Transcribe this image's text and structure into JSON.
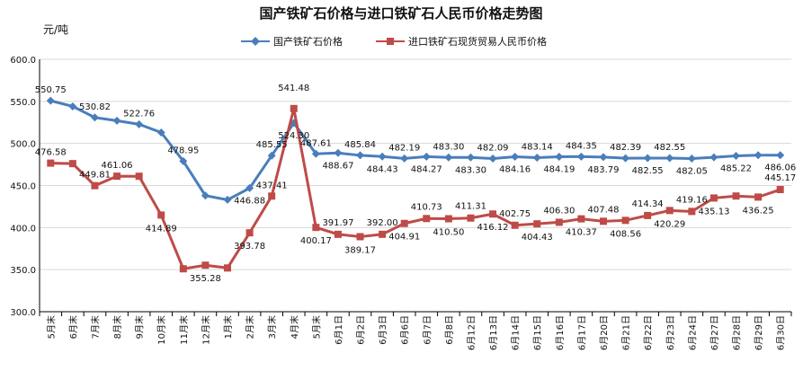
{
  "chart_data": {
    "type": "line",
    "title": "国产铁矿石价格与进口铁矿石人民币价格走势图",
    "unit_label": "元/吨",
    "ylim": [
      300,
      600
    ],
    "yticks": [
      "300.0",
      "350.0",
      "400.0",
      "450.0",
      "500.0",
      "550.0",
      "600.0"
    ],
    "grid": true,
    "legend_position": "top-center",
    "categories": [
      "5月末",
      "6月末",
      "7月末",
      "8月末",
      "9月末",
      "10月末",
      "11月末",
      "12月末",
      "1月末",
      "2月末",
      "3月末",
      "4月末",
      "5月末",
      "6月1日",
      "6月2日",
      "6月3日",
      "6月6日",
      "6月7日",
      "6月8日",
      "6月12日",
      "6月13日",
      "6月14日",
      "6月15日",
      "6月16日",
      "6月17日",
      "6月20日",
      "6月21日",
      "6月22日",
      "6月23日",
      "6月24日",
      "6月27日",
      "6月28日",
      "6月29日",
      "6月30日"
    ],
    "series": [
      {
        "name": "国产铁矿石价格",
        "color": "#4a7ebb",
        "marker": "diamond",
        "values": [
          550.75,
          544.0,
          530.82,
          527.0,
          522.76,
          513.0,
          478.95,
          438.0,
          433.0,
          446.88,
          485.55,
          524.3,
          487.61,
          488.67,
          485.84,
          484.43,
          482.19,
          484.27,
          483.3,
          483.3,
          482.09,
          484.16,
          483.14,
          484.19,
          484.35,
          483.79,
          482.39,
          482.55,
          482.55,
          482.05,
          483.5,
          485.22,
          486.0,
          486.06
        ],
        "labels": [
          "550.75",
          "",
          "530.82",
          "",
          "522.76",
          "",
          "478.95",
          "",
          "",
          "446.88",
          "485.55",
          "524.30",
          "487.61",
          "488.67",
          "485.84",
          "484.43",
          "482.19",
          "484.27",
          "483.30",
          "483.30",
          "482.09",
          "484.16",
          "483.14",
          "484.19",
          "484.35",
          "483.79",
          "482.39",
          "482.55",
          "482.55",
          "482.05",
          "",
          "485.22",
          "",
          "486.06"
        ]
      },
      {
        "name": "进口铁矿石现货贸易人民币价格",
        "color": "#be4b48",
        "marker": "square",
        "values": [
          476.58,
          476.0,
          449.81,
          461.06,
          461.0,
          414.89,
          351.0,
          355.28,
          352.0,
          393.78,
          437.41,
          541.48,
          400.17,
          391.97,
          389.17,
          392.0,
          404.91,
          410.73,
          410.5,
          411.31,
          416.12,
          402.75,
          404.43,
          406.3,
          410.37,
          407.48,
          408.56,
          414.34,
          420.29,
          419.16,
          435.13,
          437.5,
          436.25,
          445.17
        ],
        "labels": [
          "476.58",
          "",
          "449.81",
          "461.06",
          "",
          "414.89",
          "",
          "355.28",
          "",
          "393.78",
          "437.41",
          "541.48",
          "400.17",
          "391.97",
          "389.17",
          "392.00",
          "404.91",
          "410.73",
          "410.50",
          "411.31",
          "416.12",
          "402.75",
          "404.43",
          "406.30",
          "410.37",
          "407.48",
          "408.56",
          "414.34",
          "420.29",
          "419.16",
          "435.13",
          "",
          "436.25",
          "445.17"
        ]
      }
    ]
  }
}
